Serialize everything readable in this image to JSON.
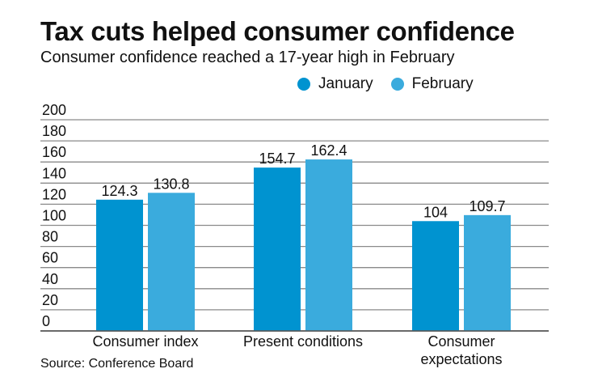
{
  "title": "Tax cuts helped consumer confidence",
  "subtitle": "Consumer confidence reached a 17-year high in February",
  "source": "Source: Conference Board",
  "chart_data": {
    "type": "bar",
    "categories": [
      [
        "Consumer index"
      ],
      [
        "Present conditions"
      ],
      [
        "Consumer",
        "expectations"
      ]
    ],
    "series": [
      {
        "name": "January",
        "color": "#0093d0",
        "values": [
          124.3,
          154.7,
          104
        ],
        "labels": [
          "124.3",
          "154.7",
          "104"
        ]
      },
      {
        "name": "February",
        "color": "#3aabdd",
        "values": [
          130.8,
          162.4,
          109.7
        ],
        "labels": [
          "130.8",
          "162.4",
          "109.7"
        ]
      }
    ],
    "ylim": [
      0,
      200
    ],
    "yticks": [
      "0",
      "20",
      "40",
      "60",
      "80",
      "100",
      "120",
      "140",
      "160",
      "180",
      "200"
    ],
    "grid": true,
    "legend": "top-right"
  }
}
